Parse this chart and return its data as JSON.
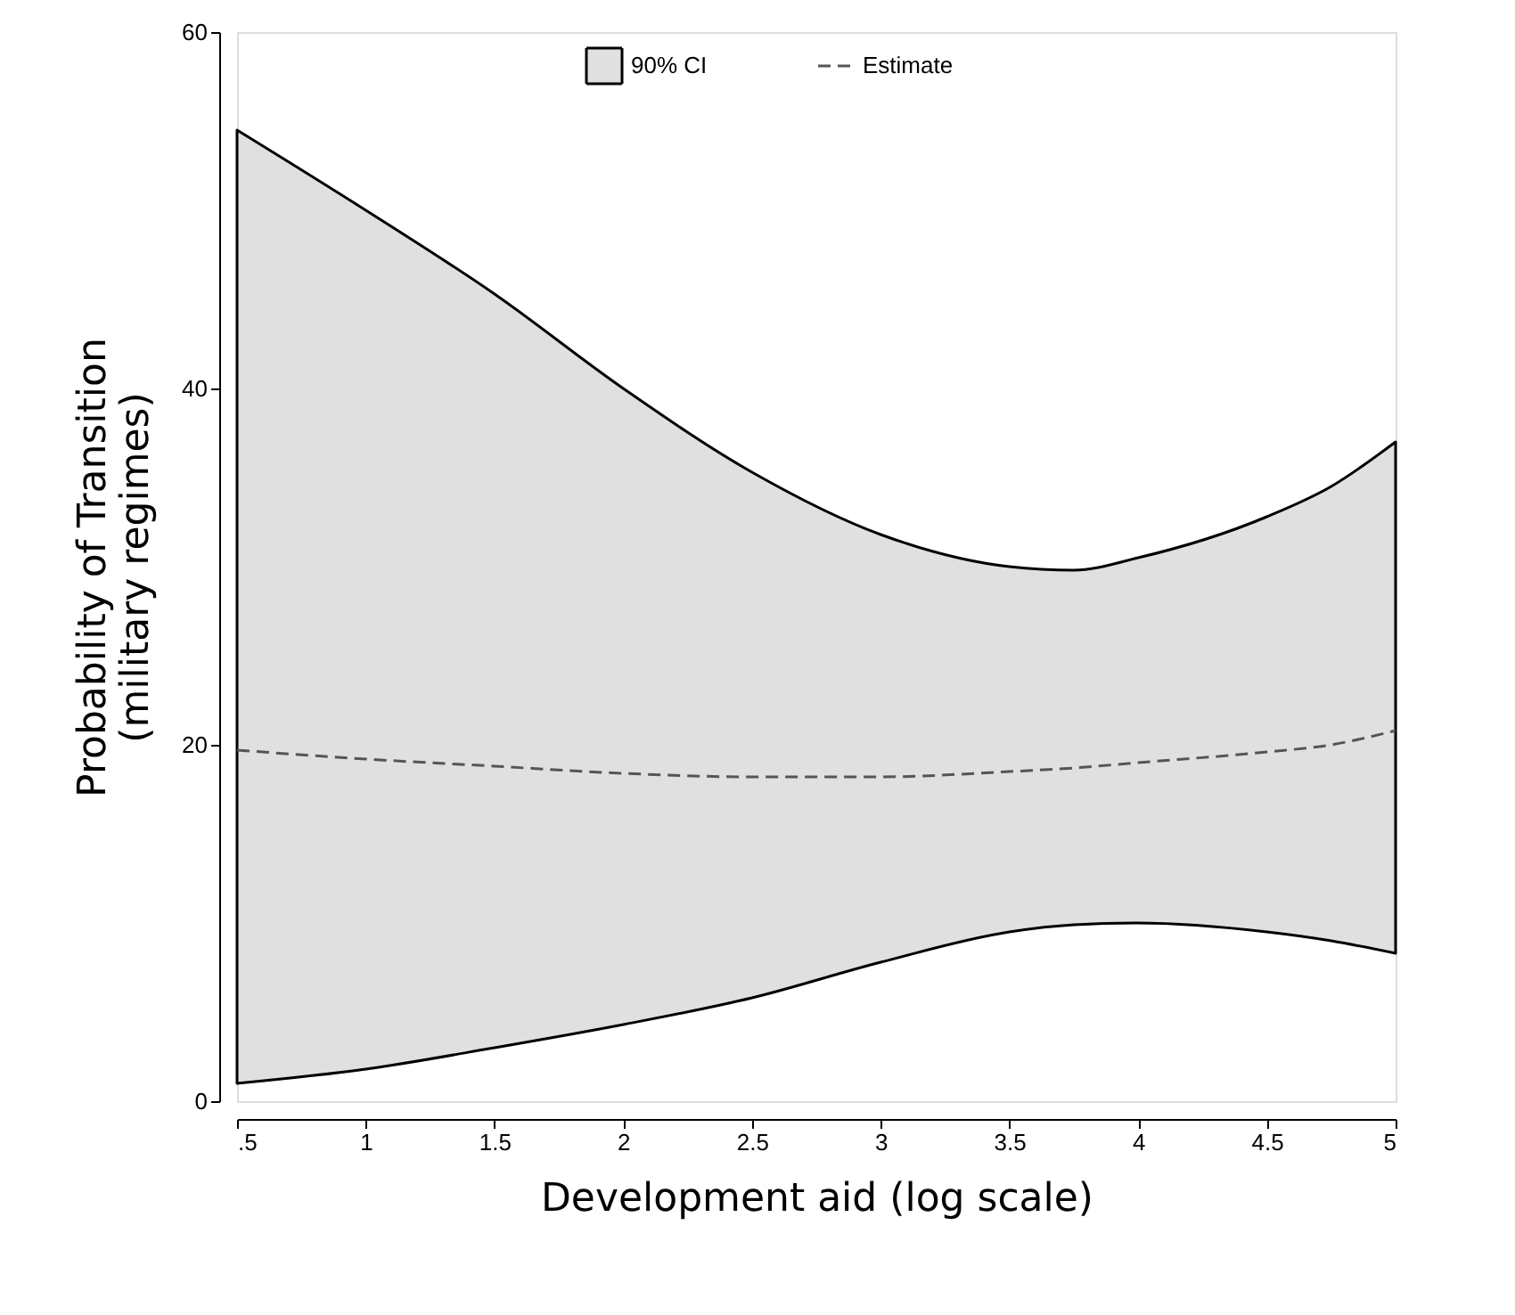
{
  "chart_data": {
    "type": "line",
    "xlabel": "Development aid (log scale)",
    "ylabel": "Probability of Transition\n(military regimes)",
    "x": [
      0.5,
      1,
      1.5,
      2,
      2.5,
      3,
      3.5,
      3.75,
      4,
      4.5,
      4.75,
      5
    ],
    "series": [
      {
        "name": "90% CI",
        "type": "area",
        "color": "#e0e0e0",
        "values": [
          null,
          null,
          null,
          null,
          null,
          null,
          null,
          null,
          null,
          null,
          null,
          null
        ]
      },
      {
        "name": "Estimate",
        "type": "line",
        "color": "#555555",
        "line_style": "dashed",
        "values": [
          19.7,
          19.2,
          18.8,
          18.4,
          18.2,
          18.2,
          18.5,
          18.7,
          19.0,
          19.6,
          20.0,
          20.8
        ],
        "lower": [
          1.0,
          1.8,
          3.0,
          4.3,
          5.8,
          7.8,
          9.5,
          9.9,
          10.0,
          9.5,
          9.0,
          8.3
        ],
        "upper": [
          54.5,
          50.0,
          45.3,
          40.0,
          35.3,
          31.8,
          30.0,
          29.8,
          30.5,
          32.8,
          34.5,
          37.0
        ]
      }
    ],
    "xlim": [
      0.5,
      5
    ],
    "ylim": [
      0,
      60
    ],
    "xticks": [
      {
        "value": 0.5,
        "label": ".5"
      },
      1,
      1.5,
      2,
      2.5,
      3,
      3.5,
      4,
      4.5,
      5
    ],
    "yticks": [
      0,
      20,
      40,
      60
    ],
    "grid": false,
    "legend": "top"
  }
}
